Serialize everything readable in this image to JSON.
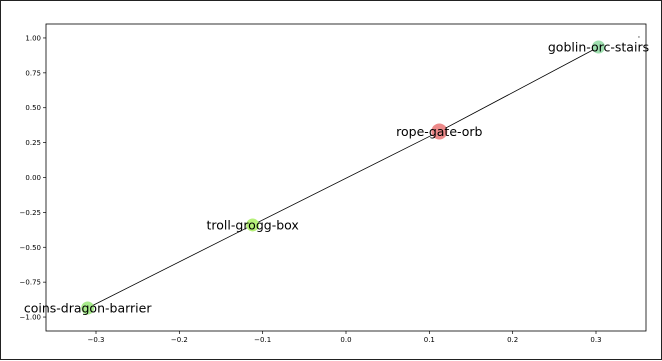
{
  "chart_data": {
    "type": "scatter",
    "title": "",
    "xlabel": "",
    "ylabel": "",
    "xlim": [
      -0.36,
      0.36
    ],
    "ylim": [
      -1.1,
      1.1
    ],
    "xticks": [
      -0.3,
      -0.2,
      -0.1,
      0.0,
      0.1,
      0.2,
      0.3
    ],
    "yticks": [
      1.0,
      0.75,
      0.5,
      0.25,
      0.0,
      -0.25,
      -0.5,
      -0.75,
      -1.0
    ],
    "xtick_labels": [
      "−0.3",
      "−0.2",
      "−0.1",
      "0.0",
      "0.1",
      "0.2",
      "0.3"
    ],
    "ytick_labels": [
      "1.00",
      "0.75",
      "0.50",
      "0.25",
      "0.00",
      "−0.25",
      "−0.50",
      "−0.75",
      "−1.00"
    ],
    "grid": false,
    "nodes": [
      {
        "label": "goblin-orc-stairs",
        "x": 0.303,
        "y": 0.935,
        "color": "#9fe0b0"
      },
      {
        "label": "rope-gate-orb",
        "x": 0.112,
        "y": 0.33,
        "color": "#ec8a8a"
      },
      {
        "label": "troll-grogg-box",
        "x": -0.112,
        "y": -0.34,
        "color": "#b6f07a"
      },
      {
        "label": "coins-dragon-barrier",
        "x": -0.31,
        "y": -0.935,
        "color": "#a8eb8c"
      }
    ],
    "edges": [
      [
        0,
        1
      ],
      [
        1,
        2
      ],
      [
        2,
        3
      ]
    ],
    "edge_color": "#000000",
    "corner_mark": "'"
  }
}
